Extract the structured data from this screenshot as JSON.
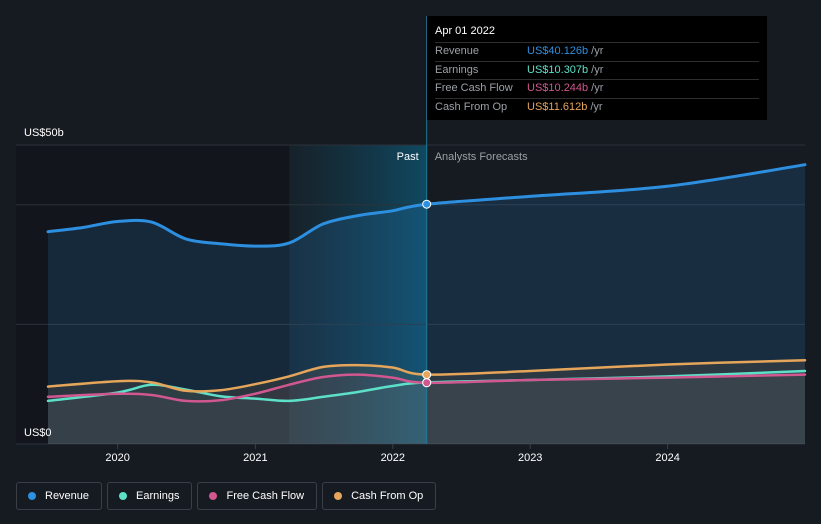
{
  "chart_data": {
    "type": "area",
    "y_unit_label_top": "US$50b",
    "y_unit_label_bottom": "US$0",
    "ylim": [
      0,
      50
    ],
    "xlim": [
      "2019-06-01",
      "2024-12-31"
    ],
    "x_ticks": [
      {
        "date": "2020-01-01",
        "label": "2020"
      },
      {
        "date": "2021-01-01",
        "label": "2021"
      },
      {
        "date": "2022-01-01",
        "label": "2022"
      },
      {
        "date": "2023-01-01",
        "label": "2023"
      },
      {
        "date": "2024-01-01",
        "label": "2024"
      }
    ],
    "grid": true,
    "divider_date": "2022-04-01",
    "highlight_start": "2021-04-01",
    "past_label": "Past",
    "forecast_label": "Analysts Forecasts",
    "series": [
      {
        "name": "Revenue",
        "color": "#2d8fe0",
        "points": [
          [
            "2019-06-30",
            35.5
          ],
          [
            "2019-10-01",
            36.2
          ],
          [
            "2019-12-31",
            37.2
          ],
          [
            "2020-03-31",
            37.1
          ],
          [
            "2020-06-30",
            34.3
          ],
          [
            "2020-09-30",
            33.5
          ],
          [
            "2020-12-31",
            33.1
          ],
          [
            "2021-03-31",
            33.6
          ],
          [
            "2021-06-30",
            36.8
          ],
          [
            "2021-09-30",
            38.2
          ],
          [
            "2021-12-31",
            39.0
          ],
          [
            "2022-04-01",
            40.1
          ],
          [
            "2022-12-31",
            41.4
          ],
          [
            "2023-12-31",
            43.1
          ],
          [
            "2024-12-31",
            46.7
          ]
        ]
      },
      {
        "name": "Earnings",
        "color": "#5ce0c7",
        "points": [
          [
            "2019-06-30",
            7.2
          ],
          [
            "2019-12-31",
            8.6
          ],
          [
            "2020-03-31",
            9.9
          ],
          [
            "2020-06-30",
            9.1
          ],
          [
            "2020-09-30",
            8.0
          ],
          [
            "2020-12-31",
            7.6
          ],
          [
            "2021-03-31",
            7.2
          ],
          [
            "2021-06-30",
            7.9
          ],
          [
            "2021-09-30",
            8.7
          ],
          [
            "2021-12-31",
            9.7
          ],
          [
            "2022-04-01",
            10.3
          ],
          [
            "2022-12-31",
            10.7
          ],
          [
            "2023-12-31",
            11.3
          ],
          [
            "2024-12-31",
            12.2
          ]
        ]
      },
      {
        "name": "Free Cash Flow",
        "color": "#d0578f",
        "points": [
          [
            "2019-06-30",
            7.9
          ],
          [
            "2019-12-31",
            8.4
          ],
          [
            "2020-03-31",
            8.2
          ],
          [
            "2020-06-30",
            7.2
          ],
          [
            "2020-09-30",
            7.3
          ],
          [
            "2020-12-31",
            8.4
          ],
          [
            "2021-03-31",
            9.9
          ],
          [
            "2021-06-30",
            11.2
          ],
          [
            "2021-09-30",
            11.6
          ],
          [
            "2021-12-31",
            11.1
          ],
          [
            "2022-04-01",
            10.24
          ],
          [
            "2022-12-31",
            10.7
          ],
          [
            "2023-12-31",
            11.1
          ],
          [
            "2024-12-31",
            11.6
          ]
        ]
      },
      {
        "name": "Cash From Op",
        "color": "#e5a55a",
        "points": [
          [
            "2019-06-30",
            9.6
          ],
          [
            "2019-12-31",
            10.5
          ],
          [
            "2020-03-31",
            10.3
          ],
          [
            "2020-06-30",
            8.9
          ],
          [
            "2020-09-30",
            9.0
          ],
          [
            "2020-12-31",
            10.0
          ],
          [
            "2021-03-31",
            11.3
          ],
          [
            "2021-06-30",
            12.9
          ],
          [
            "2021-09-30",
            13.2
          ],
          [
            "2021-12-31",
            12.8
          ],
          [
            "2022-04-01",
            11.61
          ],
          [
            "2022-12-31",
            12.2
          ],
          [
            "2023-12-31",
            13.3
          ],
          [
            "2024-12-31",
            14.0
          ]
        ]
      }
    ]
  },
  "tooltip": {
    "date": "Apr 01 2022",
    "rows": [
      {
        "name": "Revenue",
        "value": "US$40.126b",
        "unit": "/yr",
        "color": "#2d8fe0"
      },
      {
        "name": "Earnings",
        "value": "US$10.307b",
        "unit": "/yr",
        "color": "#5ce0c7"
      },
      {
        "name": "Free Cash Flow",
        "value": "US$10.244b",
        "unit": "/yr",
        "color": "#d0578f"
      },
      {
        "name": "Cash From Op",
        "value": "US$11.612b",
        "unit": "/yr",
        "color": "#e5a55a"
      }
    ]
  },
  "legend": {
    "items": [
      {
        "label": "Revenue",
        "color": "#2d8fe0"
      },
      {
        "label": "Earnings",
        "color": "#5ce0c7"
      },
      {
        "label": "Free Cash Flow",
        "color": "#d0578f"
      },
      {
        "label": "Cash From Op",
        "color": "#e5a55a"
      }
    ]
  }
}
